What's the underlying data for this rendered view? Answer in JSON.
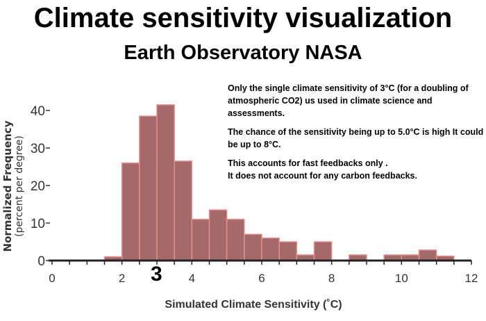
{
  "title": "Climate sensitivity visualization",
  "subtitle": "Earth Observatory NASA",
  "notes": [
    "Only the single climate sensitivity of 3°C (for a doubling of atmospheric  CO2) us used in climate science and assessments.",
    "The chance of the sensitivity being up to 5.0°C is high It could be up to 8°C.",
    "This accounts for fast feedbacks only .\nIt does not account for any carbon feedbacks."
  ],
  "highlight_label": "3",
  "chart_data": {
    "type": "bar",
    "subtype": "histogram",
    "xlabel": "Simulated Climate Sensitivity (˚C)",
    "ylabel": "Normalized Frequency",
    "ylabel2": "(percent per degree)",
    "xlim": [
      0,
      12
    ],
    "ylim": [
      0,
      40
    ],
    "xticks": [
      0,
      2,
      4,
      6,
      8,
      10,
      12
    ],
    "yticks": [
      0,
      10,
      20,
      30,
      40
    ],
    "bin_width": 0.5,
    "bin_starts": [
      1.5,
      2.0,
      2.5,
      3.0,
      3.5,
      4.0,
      4.5,
      5.0,
      5.5,
      6.0,
      6.5,
      7.0,
      7.5,
      8.0,
      8.5,
      9.0,
      9.5,
      10.0,
      10.5,
      11.0
    ],
    "values": [
      1,
      26,
      38.5,
      41.5,
      26.5,
      11,
      13.5,
      11,
      7,
      6,
      5,
      1.5,
      5,
      0,
      1.5,
      0,
      1.5,
      1.5,
      2.8,
      1.2
    ],
    "bar_color": "#a56969",
    "edge_color": "#e58e8e"
  }
}
